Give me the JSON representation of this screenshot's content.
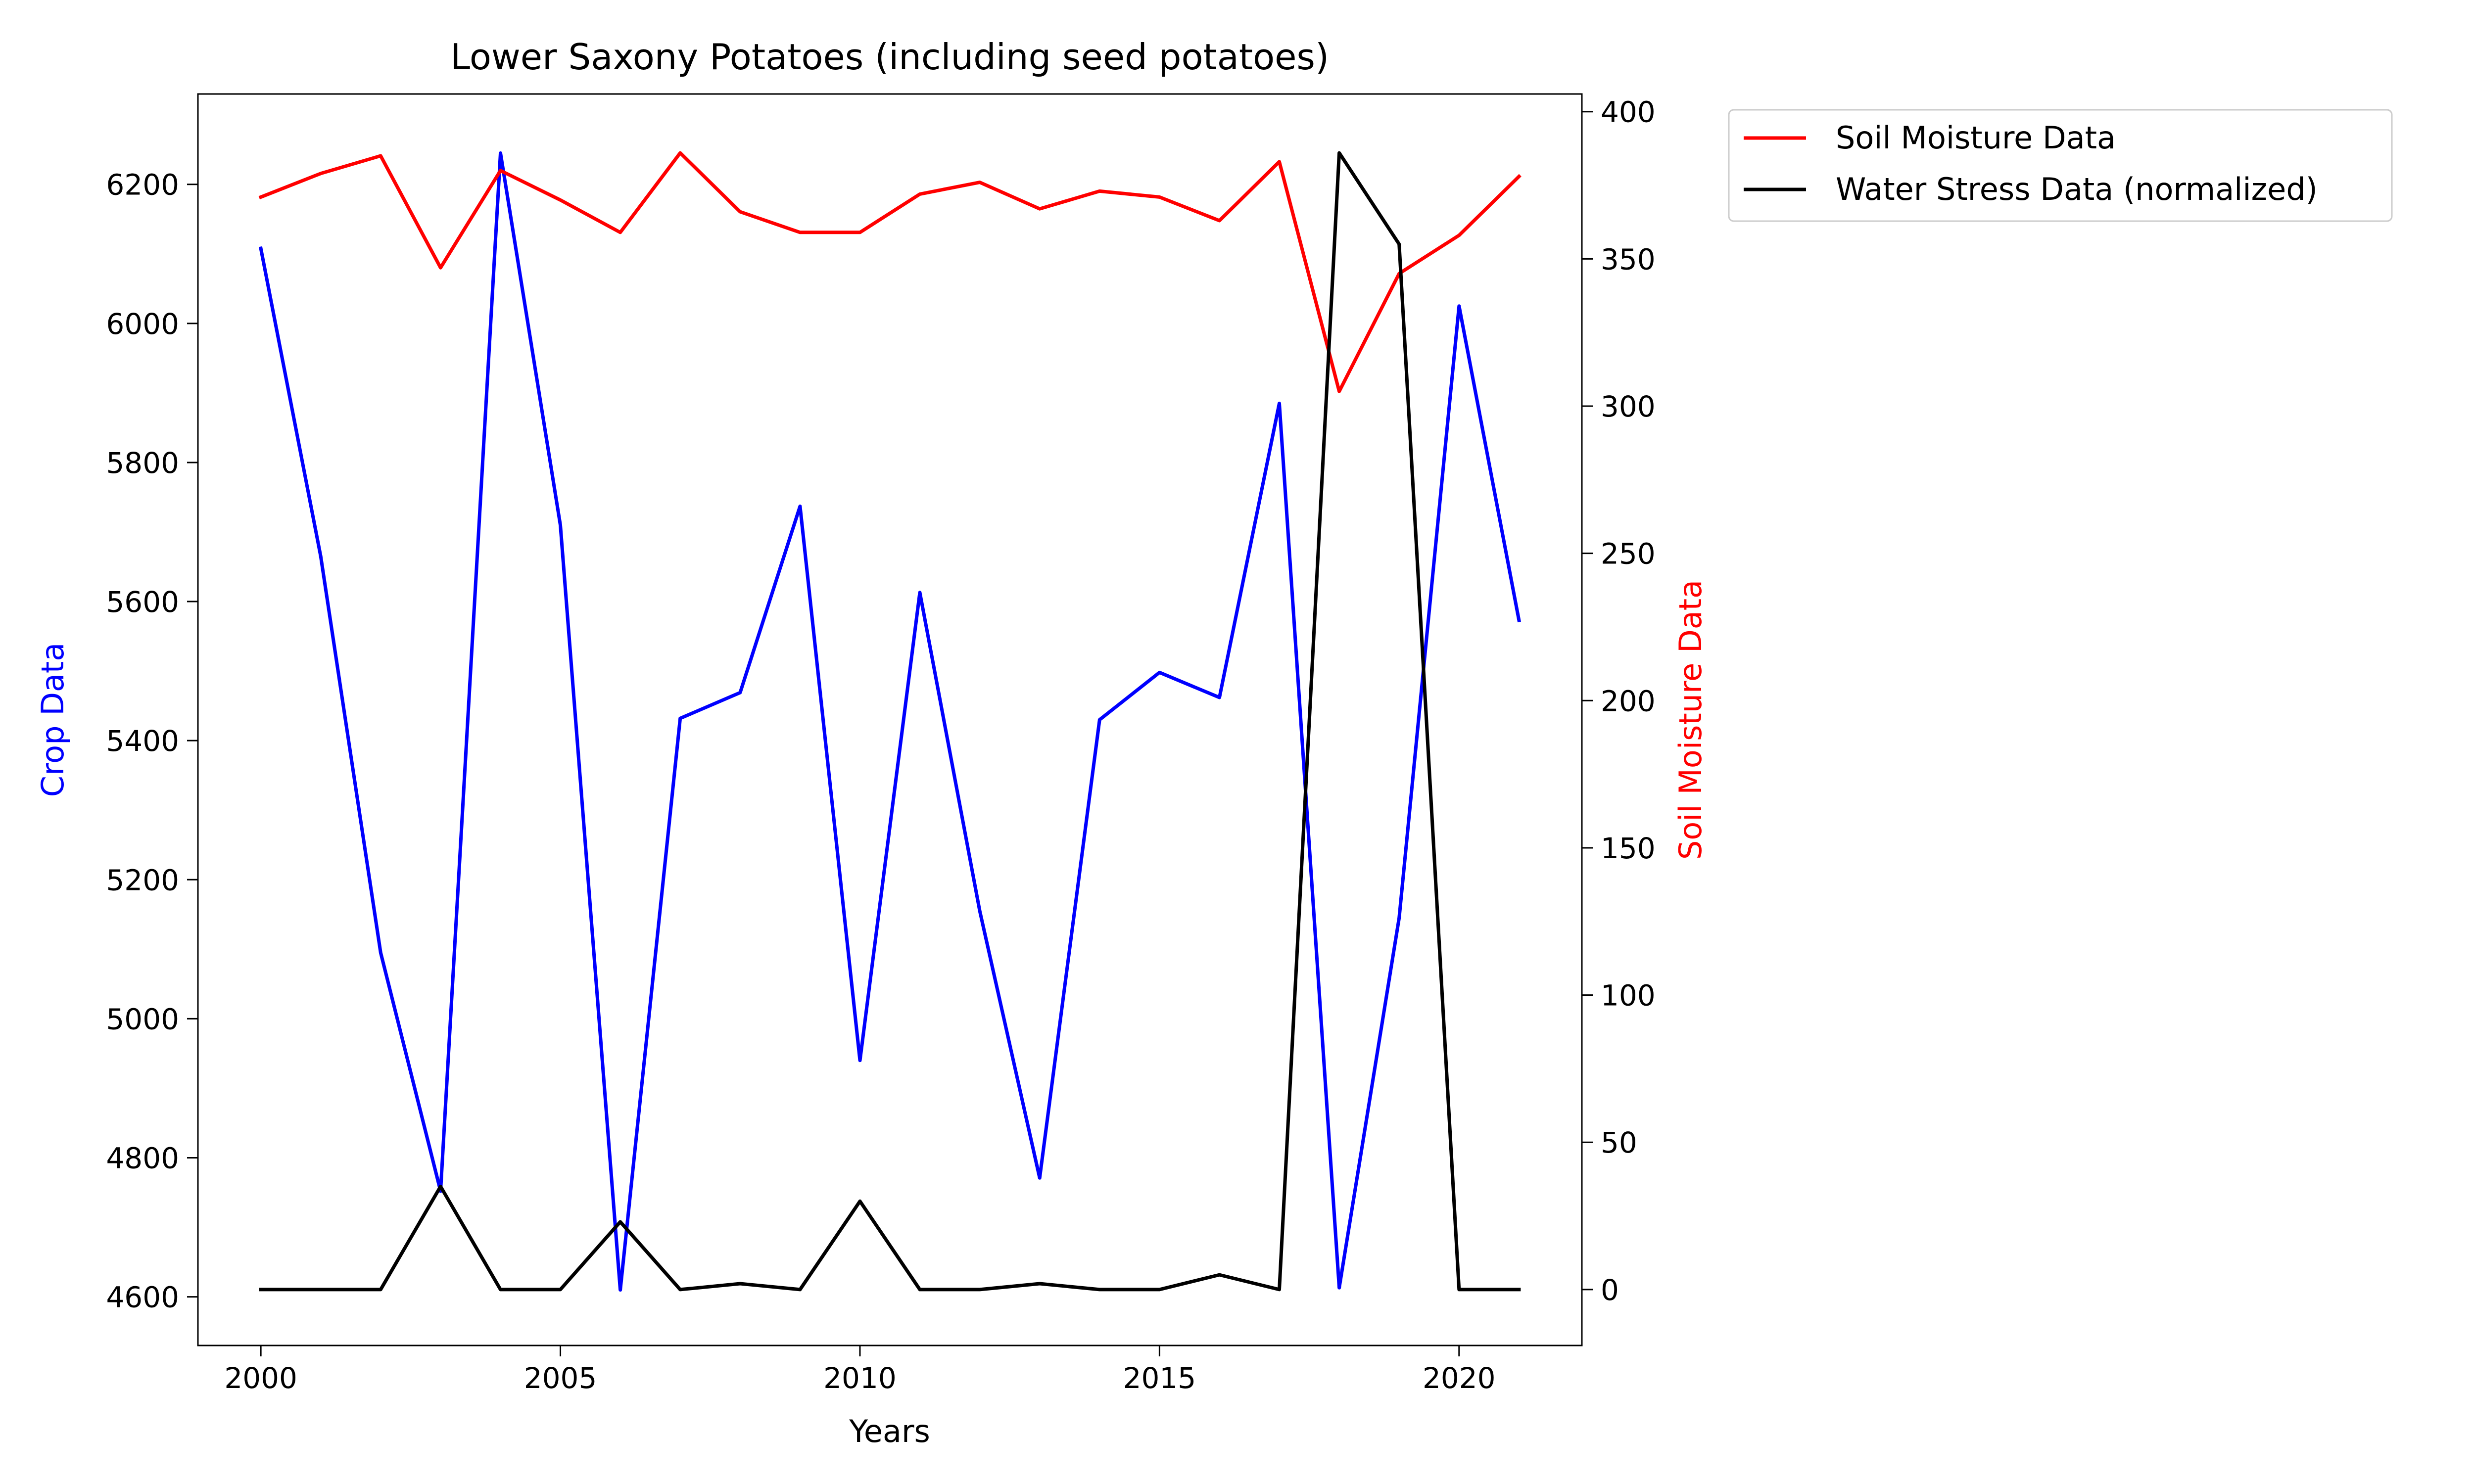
{
  "chart_data": {
    "type": "line",
    "title": "Lower Saxony Potatoes (including seed potatoes)",
    "xlabel": "Years",
    "ylabel_left": "Crop Data",
    "ylabel_right": "Soil Moisture Data",
    "x": [
      2000,
      2001,
      2002,
      2003,
      2004,
      2005,
      2006,
      2007,
      2008,
      2009,
      2010,
      2011,
      2012,
      2013,
      2014,
      2015,
      2016,
      2017,
      2018,
      2019,
      2020,
      2021
    ],
    "xlim": [
      1998.95,
      2022.05
    ],
    "xticks": [
      2000,
      2005,
      2010,
      2015,
      2020
    ],
    "ylim_left": [
      4530,
      6330
    ],
    "yticks_left": [
      4600,
      4800,
      5000,
      5200,
      5400,
      5600,
      5800,
      6000,
      6200
    ],
    "ylim_right": [
      -19,
      406
    ],
    "yticks_right": [
      0,
      50,
      100,
      150,
      200,
      250,
      300,
      350,
      400
    ],
    "grid": false,
    "legend_position": "outside upper right",
    "series": [
      {
        "name": "",
        "axis": "left",
        "color": "#0000ff",
        "values": [
          6108,
          5665,
          5095,
          4752,
          6245,
          5710,
          4610,
          5432,
          5469,
          5737,
          4940,
          5613,
          5155,
          4771,
          5430,
          5498,
          5462,
          5885,
          4613,
          5145,
          6025,
          5573
        ]
      },
      {
        "name": "Soil Moisture Data",
        "axis": "right",
        "color": "#ff0000",
        "values": [
          371,
          379,
          385,
          347,
          380,
          370,
          359,
          386,
          366,
          359,
          359,
          372,
          376,
          367,
          373,
          371,
          363,
          383,
          305,
          345,
          358,
          378
        ]
      },
      {
        "name": "Water Stress Data (normalized)",
        "axis": "right",
        "color": "#000000",
        "values": [
          0,
          0,
          0,
          35,
          0,
          0,
          23,
          0,
          2,
          0,
          30,
          0,
          0,
          2,
          0,
          0,
          5,
          0,
          386,
          355,
          0,
          0
        ]
      }
    ]
  }
}
